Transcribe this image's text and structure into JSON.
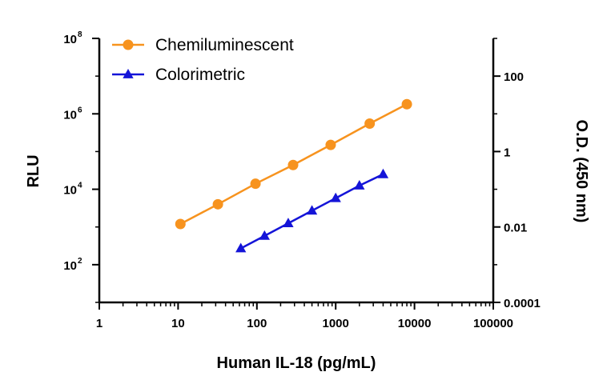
{
  "chart_data": {
    "type": "line",
    "xscale": "log",
    "yscale": "log",
    "xlabel": "Human IL-18 (pg/mL)",
    "ylabel": "RLU",
    "y2label": "O.D. (450 nm)",
    "xlim": [
      1,
      100000
    ],
    "ylim": [
      10,
      100000000
    ],
    "y2lim": [
      0.0001,
      1000
    ],
    "x_tick_labels": [
      "1",
      "10",
      "100",
      "1000",
      "10000",
      "100000"
    ],
    "y_tick_labels": [
      {
        "base": "10",
        "exp": "2"
      },
      {
        "base": "10",
        "exp": "4"
      },
      {
        "base": "10",
        "exp": "6"
      },
      {
        "base": "10",
        "exp": "8"
      }
    ],
    "y2_tick_labels": [
      "0.0001",
      "0.01",
      "1",
      "100"
    ],
    "legend_position": "top-left",
    "grid": false,
    "series": [
      {
        "name": "Chemiluminescent",
        "axis": "left",
        "color": "#F7931E",
        "marker": "circle",
        "x": [
          10.7,
          32,
          96,
          288,
          864,
          2700,
          8000
        ],
        "y": [
          1200,
          4000,
          14000,
          44000,
          150000,
          550000,
          1800000
        ]
      },
      {
        "name": "Colorimetric",
        "axis": "right",
        "color": "#1414D8",
        "marker": "triangle",
        "x": [
          62.5,
          125,
          250,
          500,
          1000,
          2000,
          4000
        ],
        "y": [
          0.0027,
          0.0058,
          0.0125,
          0.027,
          0.058,
          0.125,
          0.25
        ]
      }
    ]
  }
}
